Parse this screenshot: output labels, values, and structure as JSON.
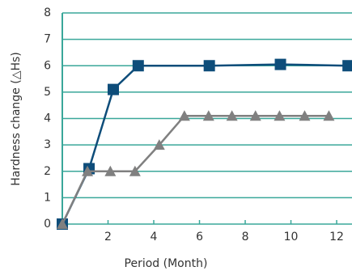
{
  "chart_data": {
    "type": "line",
    "x_label": "Period (Month)",
    "y_label": "Hardness change (△Hs)",
    "xlim": [
      0,
      12.6
    ],
    "xticks": [
      2,
      4,
      6,
      8,
      10,
      12
    ],
    "ylim": [
      0,
      8
    ],
    "yticks": [
      0,
      1,
      2,
      3,
      4,
      5,
      6,
      7,
      8
    ],
    "grid": true,
    "grid_color": "#3aa79a",
    "series": [
      {
        "color": "#0e4d7a",
        "marker": "square",
        "x": [
          0,
          1.17,
          2.23,
          3.32,
          6.43,
          9.54,
          12.5
        ],
        "values": [
          0,
          2.1,
          5.1,
          6.0,
          6.0,
          6.05,
          6.0
        ]
      },
      {
        "color": "#808080",
        "marker": "triangle",
        "x": [
          0,
          1.1,
          2.1,
          3.18,
          4.24,
          5.34,
          6.4,
          7.42,
          8.45,
          9.5,
          10.6,
          11.66
        ],
        "values": [
          0,
          2,
          2,
          2,
          3,
          4.1,
          4.1,
          4.1,
          4.1,
          4.1,
          4.1,
          4.1
        ]
      }
    ]
  }
}
